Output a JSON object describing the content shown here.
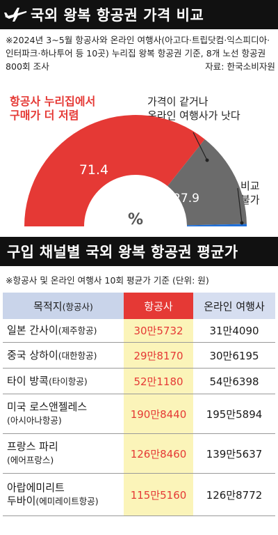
{
  "header": {
    "title": "국외 왕복 항공권 가격 비교",
    "icon": "airplane-icon"
  },
  "note": {
    "text": "※2024년 3~5월 항공사와 온라인 여행사(아고다·트립닷컴·익스피디아·인터파크·하나투어 등 10곳) 누리집 왕복 항공권 기준, 8개 노선 항공권 800회 조사",
    "source": "자료: 한국소비자원"
  },
  "chart_data": {
    "type": "pie",
    "subtype": "semicircle-gauge",
    "unit": "%",
    "slices": [
      {
        "label": "항공사 누리집에서 구매가 더 저렴",
        "value": 71.4,
        "color": "#e53935"
      },
      {
        "label": "가격이 같거나 온라인 여행사가 낫다",
        "value": 27.9,
        "color": "#6b6b6b"
      },
      {
        "label": "비교 불가",
        "value": 0.7,
        "color": "#1e6fd9"
      }
    ]
  },
  "labels": {
    "red_line1": "항공사 누리집에서",
    "red_line2": "구매가 더 저렴",
    "gray_line1": "가격이 같거나",
    "gray_line2": "온라인 여행사가 낫다",
    "blue_line1": "비교",
    "blue_line2": "불가",
    "red_value": "71.4",
    "gray_value": "27.9",
    "unit": "%"
  },
  "section2": {
    "title": "구입 채널별 국외 왕복 항공권 평균가",
    "note": "※항공사 및 온라인 여행사 10회 평균가 기준 (단위: 원)"
  },
  "table": {
    "headers": {
      "route": "목적지",
      "route_sub": "(항공사)",
      "airline": "항공사",
      "online": "온라인 여행사"
    },
    "rows": [
      {
        "dest": "일본 간사이",
        "carrier": "(제주항공)",
        "airline": "30만5732",
        "online": "31만4090"
      },
      {
        "dest": "중국 상하이",
        "carrier": "(대한항공)",
        "airline": "29만8170",
        "online": "30만6195"
      },
      {
        "dest": "타이 방콕",
        "carrier": "(타이항공)",
        "airline": "52만1180",
        "online": "54만6398"
      },
      {
        "dest": "미국 로스앤젤레스",
        "carrier": "(아시아나항공)",
        "airline": "190만8440",
        "online": "195만5894"
      },
      {
        "dest": "프랑스 파리",
        "carrier": "(에어프랑스)",
        "airline": "126만8460",
        "online": "139만5637"
      },
      {
        "dest": "아랍에미리트 두바이",
        "dest_line1": "아랍에미리트",
        "dest_line2": "두바이",
        "carrier": "(에미레이트항공)",
        "airline": "115만5160",
        "online": "126만8772"
      }
    ]
  }
}
